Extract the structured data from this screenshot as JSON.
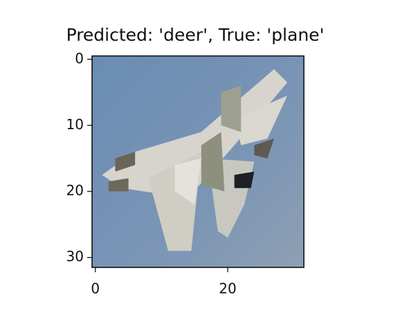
{
  "chart_data": {
    "type": "image",
    "title": "Predicted: 'deer', True: 'plane'",
    "xlim": [
      -0.5,
      31.5
    ],
    "xticks": [
      0,
      20
    ],
    "ylim": [
      31.5,
      -0.5
    ],
    "yticks": [
      0,
      10,
      20,
      30
    ]
  }
}
